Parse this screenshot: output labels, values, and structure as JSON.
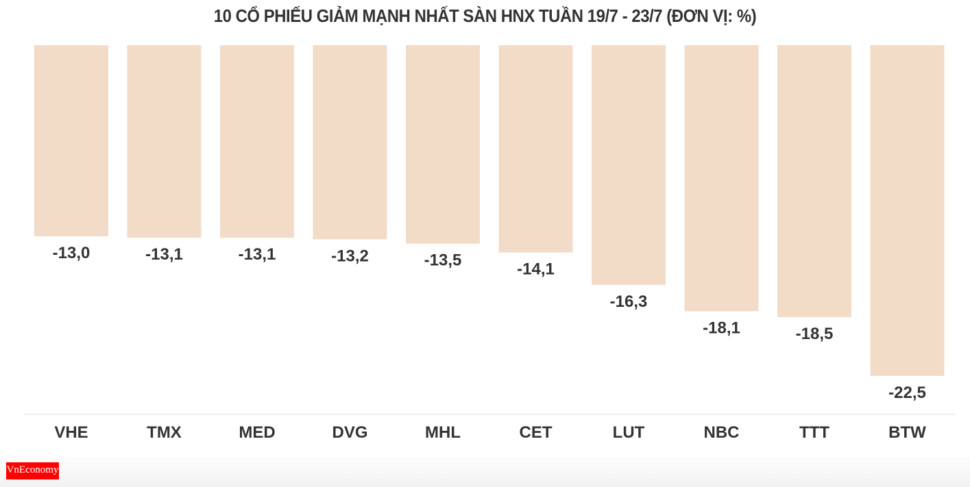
{
  "chart_data": {
    "type": "bar",
    "title": "10 CỔ PHIẾU GIẢM MẠNH NHẤT SÀN HNX TUẦN 19/7 - 23/7 (ĐƠN VỊ: %)",
    "categories": [
      "VHE",
      "TMX",
      "MED",
      "DVG",
      "MHL",
      "CET",
      "LUT",
      "NBC",
      "TTT",
      "BTW"
    ],
    "values": [
      -13.0,
      -13.1,
      -13.1,
      -13.2,
      -13.5,
      -14.1,
      -16.3,
      -18.1,
      -18.5,
      -22.5
    ],
    "value_labels": [
      "-13,0",
      "-13,1",
      "-13,1",
      "-13,2",
      "-13,5",
      "-14,1",
      "-16,3",
      "-18,1",
      "-18,5",
      "-22,5"
    ],
    "xlabel": "",
    "ylabel": "",
    "ylim": [
      -25,
      0
    ],
    "grid": false,
    "bar_color": "#f2dcc8"
  },
  "logo": {
    "text": "VnEconomy",
    "color": "#ff0000"
  }
}
